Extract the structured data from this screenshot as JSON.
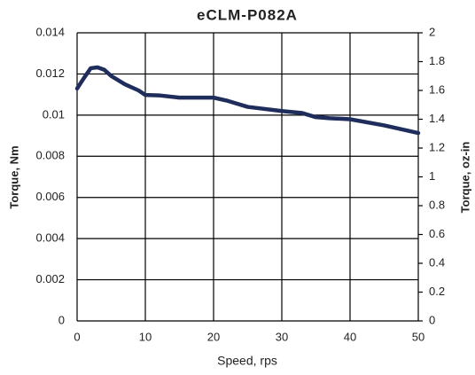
{
  "chart_data": {
    "type": "line",
    "title": "eCLM-P082A",
    "x_label": "Speed, rps",
    "y_label": "Torque,  Nm",
    "y2_label": "Torque,  oz-in",
    "x": [
      0,
      1,
      2,
      3,
      4,
      5,
      7,
      9,
      10,
      12,
      15,
      20,
      22,
      25,
      30,
      33,
      35,
      37,
      40,
      45,
      50
    ],
    "series": [
      {
        "name": "Torque",
        "color": "#1f2d5c",
        "values": [
          0.01129,
          0.0118,
          0.01228,
          0.01232,
          0.0122,
          0.0119,
          0.0115,
          0.0112,
          0.01098,
          0.01096,
          0.01085,
          0.01085,
          0.0107,
          0.0104,
          0.0102,
          0.0101,
          0.0099,
          0.00985,
          0.0098,
          0.0095,
          0.00913
        ]
      }
    ],
    "xlim": [
      0,
      50
    ],
    "xticks": [
      0,
      10,
      20,
      30,
      40,
      50
    ],
    "ylim": [
      0,
      0.014
    ],
    "yticks": [
      0,
      0.002,
      0.004,
      0.006,
      0.008,
      0.01,
      0.012,
      0.014
    ],
    "y2lim": [
      0,
      2
    ],
    "y2ticks": [
      0,
      0.2,
      0.4,
      0.6,
      0.8,
      1,
      1.2,
      1.4,
      1.6,
      1.8,
      2
    ],
    "grid": true
  }
}
